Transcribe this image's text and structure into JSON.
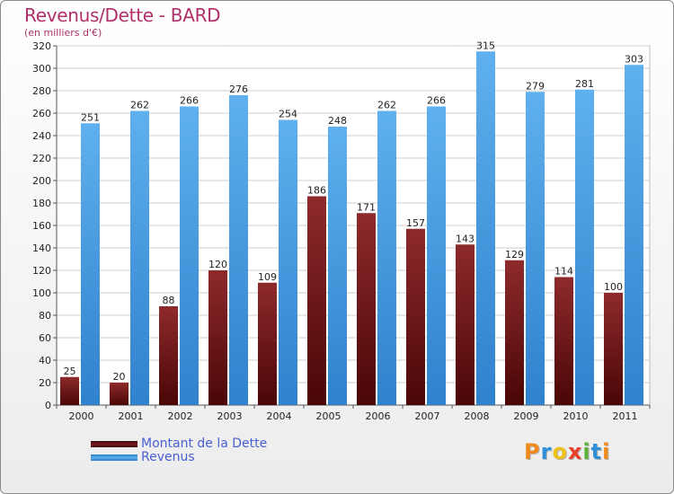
{
  "title": "Revenus/Dette - BARD",
  "subtitle": "(en milliers d'€)",
  "logo_text": "Proxiti",
  "colors": {
    "dette": "#7b1c1e",
    "revenus": "#3b93dc",
    "title": "#b0306a",
    "legend_text": "#4a5fd0"
  },
  "chart_data": {
    "type": "bar",
    "title": "Revenus/Dette - BARD",
    "subtitle": "(en milliers d'€)",
    "categories": [
      "2000",
      "2001",
      "2002",
      "2003",
      "2004",
      "2005",
      "2006",
      "2007",
      "2008",
      "2009",
      "2010",
      "2011"
    ],
    "series": [
      {
        "name": "Montant de la Dette",
        "values": [
          25,
          20,
          88,
          120,
          109,
          186,
          171,
          157,
          143,
          129,
          114,
          100
        ]
      },
      {
        "name": "Revenus",
        "values": [
          251,
          262,
          266,
          276,
          254,
          248,
          262,
          266,
          315,
          279,
          281,
          303
        ]
      }
    ],
    "ylim": [
      0,
      320
    ],
    "yticks": [
      0,
      20,
      40,
      60,
      80,
      100,
      120,
      140,
      160,
      180,
      200,
      220,
      240,
      260,
      280,
      300,
      320
    ],
    "grid": true,
    "legend_position": "bottom-left"
  }
}
